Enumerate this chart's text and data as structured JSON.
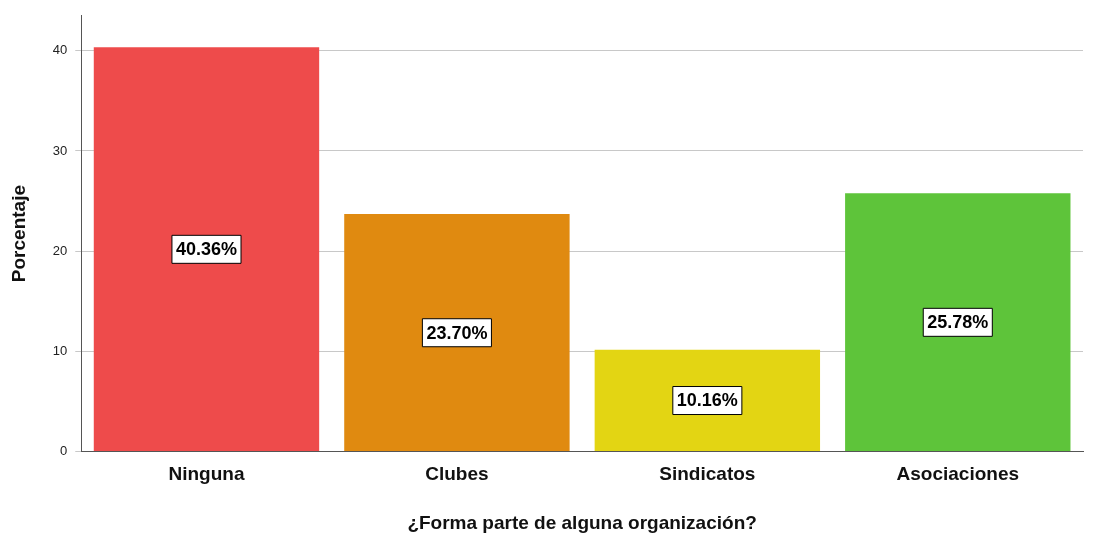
{
  "chart_data": {
    "type": "bar",
    "xlabel": "¿Forma parte de alguna organización?",
    "ylabel": "Porcentaje",
    "categories": [
      "Ninguna",
      "Clubes",
      "Sindicatos",
      "Asociaciones"
    ],
    "values": [
      40.36,
      23.7,
      10.16,
      25.78
    ],
    "colors": [
      "#ee4b4b",
      "#e08a10",
      "#e3d513",
      "#5ec43a"
    ],
    "value_labels": [
      "40.36%",
      "23.70%",
      "10.16%",
      "25.78%"
    ],
    "ylim": [
      0,
      43.5
    ],
    "yticks": [
      0,
      10,
      20,
      30,
      40
    ],
    "grid": "y",
    "legend": false
  }
}
